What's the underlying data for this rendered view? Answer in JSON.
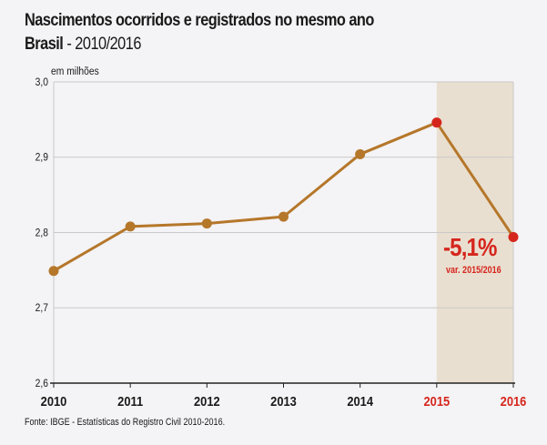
{
  "title": "Nascimentos ocorridos e registrados no mesmo ano",
  "subtitle_bold": "Brasil",
  "subtitle_rest": " - 2010/2016",
  "source": "Fonte: IBGE - Estatísticas do Registro Civil 2010-2016.",
  "colors": {
    "line": "#b5772a",
    "highlight": "#d5261d",
    "shade": "#e9dfd0",
    "grid": "#c9c9c9",
    "axis": "#222222",
    "background": "#f4f3f5"
  },
  "chart_data": {
    "type": "line",
    "ylabel": "em milhões",
    "ylim": [
      2.6,
      3.0
    ],
    "yticks": [
      "2,6",
      "2,7",
      "2,8",
      "2,9",
      "3,0"
    ],
    "ytick_values": [
      2.6,
      2.7,
      2.8,
      2.9,
      3.0
    ],
    "categories": [
      "2010",
      "2011",
      "2012",
      "2013",
      "2014",
      "2015",
      "2016"
    ],
    "values": [
      2.749,
      2.808,
      2.812,
      2.821,
      2.904,
      2.946,
      2.794
    ],
    "highlighted_categories": [
      "2015",
      "2016"
    ],
    "shaded_range": [
      "2015",
      "2016"
    ],
    "grid": "horizontal",
    "annotation": {
      "value": "-5,1%",
      "label": "var. 2015/2016"
    }
  }
}
